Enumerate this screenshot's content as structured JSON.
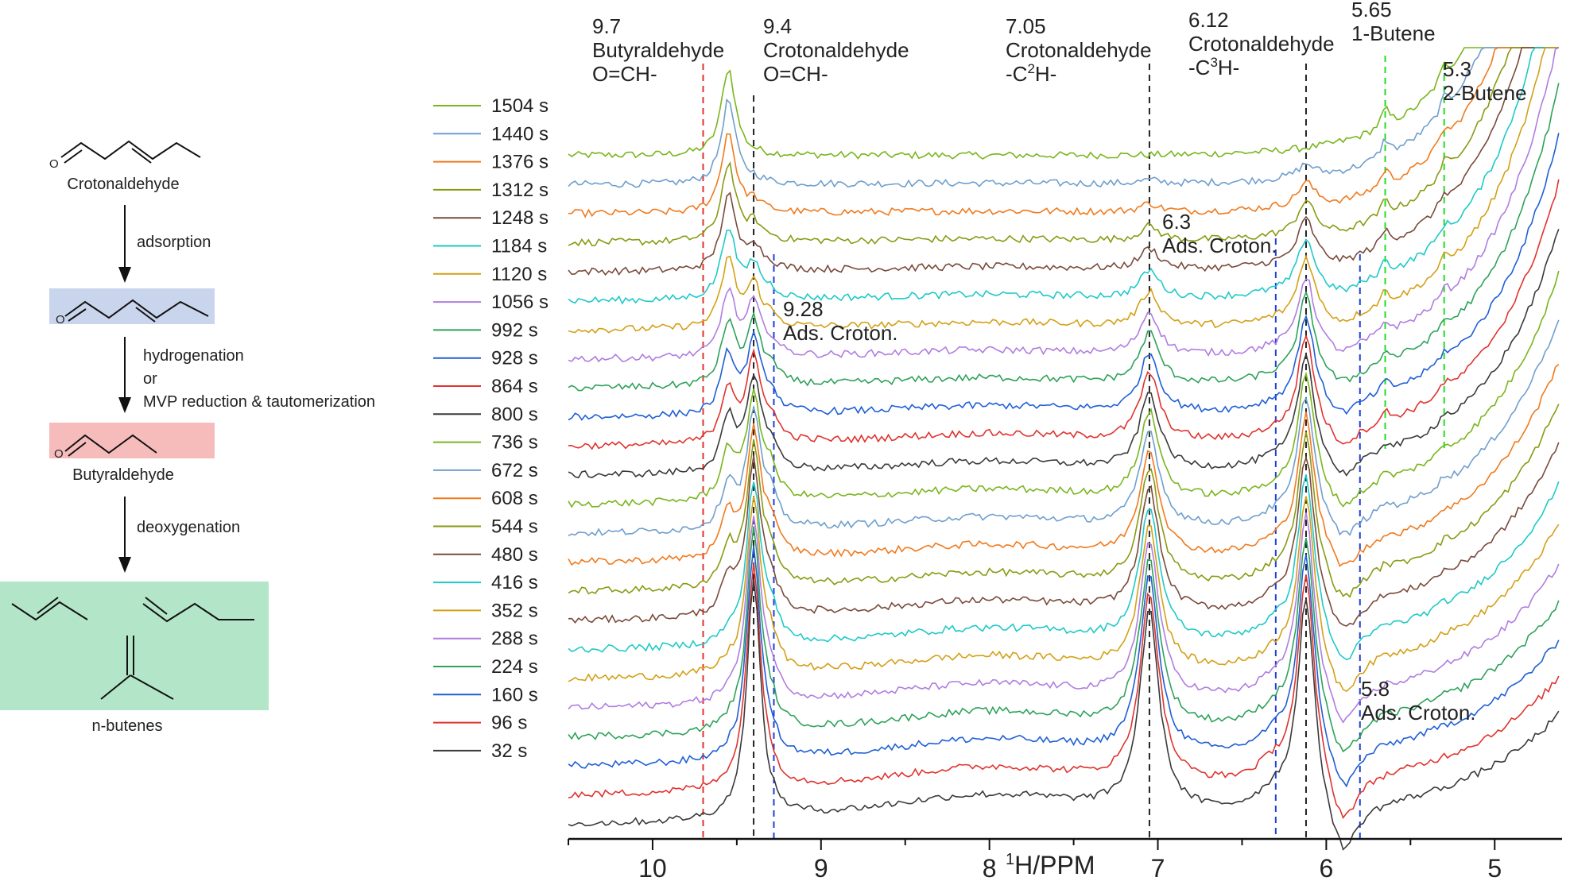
{
  "scheme": {
    "molecules": {
      "crotonaldehyde": "Crotonaldehyde",
      "butyraldehyde": "Butyraldehyde",
      "nbutenes": "n-butenes",
      "o_label": "O"
    },
    "steps": {
      "adsorption": "adsorption",
      "hydrogenation_1": "hydrogenation",
      "hydrogenation_2": "or",
      "hydrogenation_3": "MVP reduction & tautomerization",
      "deoxygenation": "deoxygenation"
    },
    "box_colors": {
      "adsorbed": "#c9d5ec",
      "butyraldehyde": "#f6bcbc",
      "butenes": "#b3e6c9"
    }
  },
  "chart_data": {
    "type": "line",
    "title": "",
    "xlabel": "1H/PPM",
    "xlabel_prefix": "1",
    "xlabel_main": "H/PPM",
    "xlim": [
      10.5,
      4.6
    ],
    "xticks": [
      10,
      9,
      8,
      7,
      6,
      5
    ],
    "xtick_labels": [
      "10",
      "9",
      "8",
      "7",
      "6",
      "5"
    ],
    "series": [
      {
        "name": "1504 s",
        "color": "#7ab51d"
      },
      {
        "name": "1440 s",
        "color": "#6f9fcd"
      },
      {
        "name": "1376 s",
        "color": "#f07a1e"
      },
      {
        "name": "1312 s",
        "color": "#8a9a12"
      },
      {
        "name": "1248 s",
        "color": "#7a4a3a"
      },
      {
        "name": "1184 s",
        "color": "#1fc9c9"
      },
      {
        "name": "1120 s",
        "color": "#d4a017"
      },
      {
        "name": "1056 s",
        "color": "#b07de0"
      },
      {
        "name": "992 s",
        "color": "#2ea25a"
      },
      {
        "name": "928 s",
        "color": "#1f5fd6"
      },
      {
        "name": "864 s",
        "color": "#e0332e"
      },
      {
        "name": "800 s",
        "color": "#3a3a3a"
      },
      {
        "name": "736 s",
        "color": "#7ab51d"
      },
      {
        "name": "672 s",
        "color": "#6f9fcd"
      },
      {
        "name": "608 s",
        "color": "#f07a1e"
      },
      {
        "name": "544 s",
        "color": "#8a9a12"
      },
      {
        "name": "480 s",
        "color": "#7a4a3a"
      },
      {
        "name": "416 s",
        "color": "#1fc9c9"
      },
      {
        "name": "352 s",
        "color": "#d4a017"
      },
      {
        "name": "288 s",
        "color": "#b07de0"
      },
      {
        "name": "224 s",
        "color": "#2ea25a"
      },
      {
        "name": "160 s",
        "color": "#1f5fd6"
      },
      {
        "name": "96 s",
        "color": "#e0332e"
      },
      {
        "name": "32 s",
        "color": "#3a3a3a"
      }
    ],
    "peaks": [
      {
        "ppm": 9.7,
        "value_label": "9.7",
        "name": "Butyraldehyde",
        "group": "O=CH-",
        "color": "#e0332e"
      },
      {
        "ppm": 9.4,
        "value_label": "9.4",
        "name": "Crotonaldehyde",
        "group": "O=CH-",
        "color": "#222222"
      },
      {
        "ppm": 9.28,
        "value_label": "9.28",
        "name": "Ads. Croton.",
        "group": "",
        "color": "#1f3fd6"
      },
      {
        "ppm": 7.05,
        "value_label": "7.05",
        "name": "Crotonaldehyde",
        "group_pre": "-C",
        "group_sup": "2",
        "group_post": "H-",
        "color": "#222222"
      },
      {
        "ppm": 6.3,
        "value_label": "6.3",
        "name": "Ads. Croton.",
        "group": "",
        "color": "#1f3fd6"
      },
      {
        "ppm": 6.12,
        "value_label": "6.12",
        "name": "Crotonaldehyde",
        "group_pre": "-C",
        "group_sup": "3",
        "group_post": "H-",
        "color": "#222222"
      },
      {
        "ppm": 5.8,
        "value_label": "5.8",
        "name": "Ads. Croton.",
        "group": "",
        "color": "#1f3fd6"
      },
      {
        "ppm": 5.65,
        "value_label": "5.65",
        "name": "1-Butene",
        "group": "",
        "color": "#22dd22"
      },
      {
        "ppm": 5.3,
        "value_label": "5.3",
        "name": "2-Butene",
        "group": "",
        "color": "#22dd22"
      }
    ]
  }
}
